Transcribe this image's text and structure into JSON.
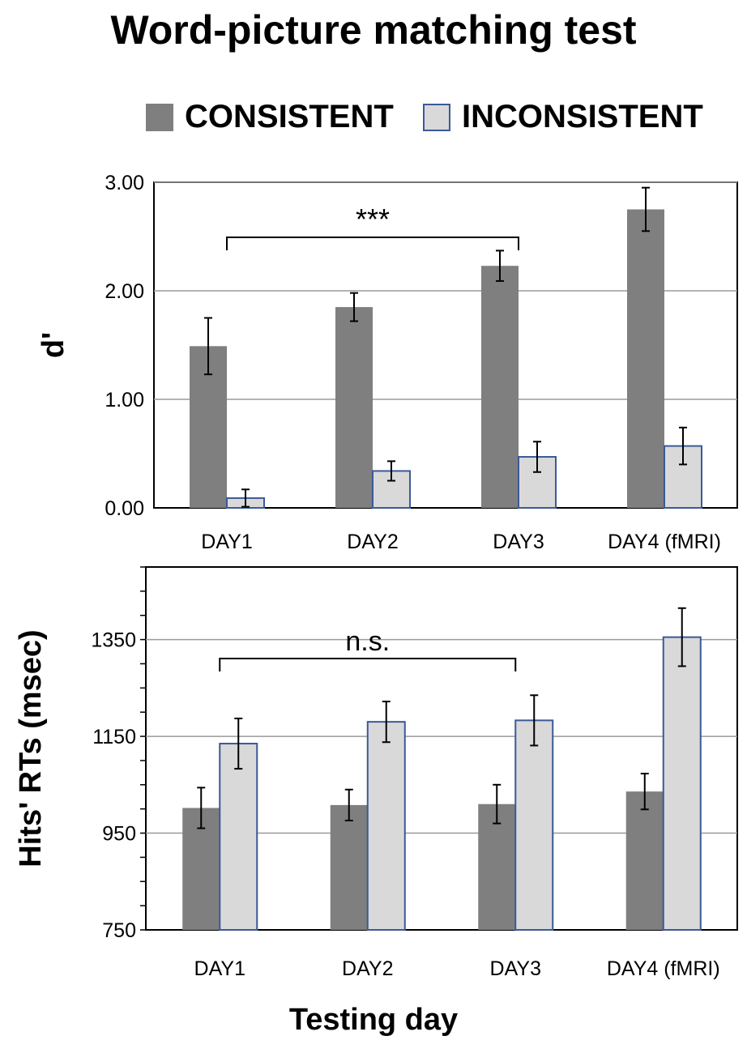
{
  "title": "Word-picture matching test",
  "legend": [
    {
      "label": "CONSISTENT",
      "color": "#7f7f7f",
      "border": "#7f7f7f"
    },
    {
      "label": "INCONSISTENT",
      "color": "#d9d9d9",
      "border": "#3b5998"
    }
  ],
  "x_axis_title": "Testing day",
  "chart_data": [
    {
      "type": "bar",
      "categories": [
        "DAY1",
        "DAY2",
        "DAY3",
        "DAY4 (fMRI)"
      ],
      "ylabel": "d'",
      "ylim": [
        0,
        3
      ],
      "yticks": [
        0,
        1,
        2,
        3
      ],
      "ytick_labels": [
        "0.00",
        "1.00",
        "2.00",
        "3.00"
      ],
      "grid": true,
      "series": [
        {
          "name": "CONSISTENT",
          "values": [
            1.49,
            1.85,
            2.23,
            2.75
          ],
          "errors": [
            0.26,
            0.13,
            0.14,
            0.2
          ]
        },
        {
          "name": "INCONSISTENT",
          "values": [
            0.09,
            0.34,
            0.47,
            0.57
          ],
          "errors": [
            0.08,
            0.09,
            0.14,
            0.17
          ]
        }
      ],
      "annotation": {
        "text": "***",
        "from": "DAY1",
        "to": "DAY3"
      }
    },
    {
      "type": "bar",
      "categories": [
        "DAY1",
        "DAY2",
        "DAY3",
        "DAY4 (fMRI)"
      ],
      "ylabel": "Hits' RTs (msec)",
      "ylim": [
        750,
        1500
      ],
      "yticks": [
        750,
        950,
        1150,
        1350
      ],
      "ytick_labels": [
        "750",
        "950",
        "1150",
        "1350"
      ],
      "grid": true,
      "series": [
        {
          "name": "CONSISTENT",
          "values": [
            1002,
            1008,
            1010,
            1036
          ],
          "errors": [
            42,
            32,
            40,
            37
          ]
        },
        {
          "name": "INCONSISTENT",
          "values": [
            1135,
            1180,
            1183,
            1355
          ],
          "errors": [
            52,
            42,
            52,
            60
          ]
        }
      ],
      "annotation": {
        "text": "n.s.",
        "from": "DAY1",
        "to": "DAY3"
      }
    }
  ]
}
